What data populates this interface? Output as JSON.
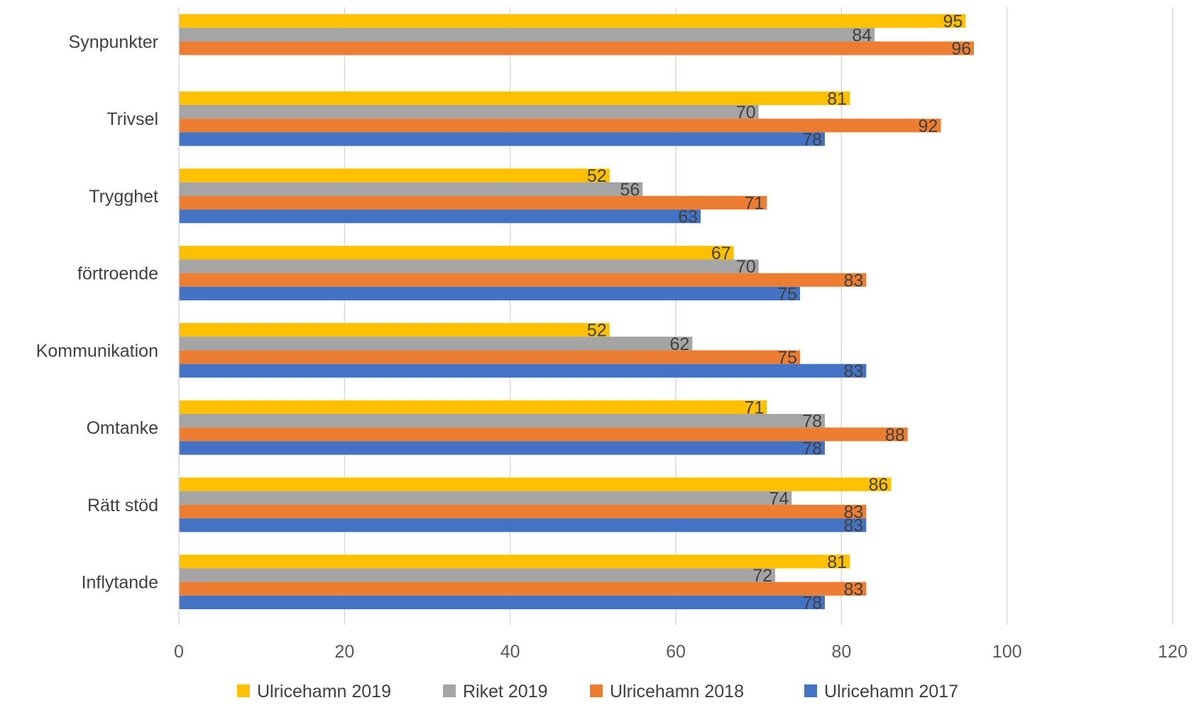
{
  "chart_data": {
    "type": "bar",
    "orientation": "horizontal",
    "title": "",
    "xlabel": "",
    "ylabel": "",
    "xlim": [
      0,
      120
    ],
    "x_ticks": [
      0,
      20,
      40,
      60,
      80,
      100,
      120
    ],
    "grid": "vertical",
    "legend_position": "bottom",
    "categories": [
      "Synpunkter",
      "Trivsel",
      "Trygghet",
      "förtroende",
      "Kommunikation",
      "Omtanke",
      "Rätt stöd",
      "Inflytande"
    ],
    "series": [
      {
        "name": "Ulricehamn 2019",
        "color": "#FFC000",
        "values": [
          95,
          81,
          52,
          67,
          52,
          71,
          86,
          81
        ]
      },
      {
        "name": "Riket 2019",
        "color": "#A5A5A5",
        "values": [
          84,
          70,
          56,
          70,
          62,
          78,
          74,
          72
        ]
      },
      {
        "name": "Ulricehamn 2018",
        "color": "#ED7D31",
        "values": [
          96,
          92,
          71,
          83,
          75,
          88,
          83,
          83
        ]
      },
      {
        "name": "Ulricehamn 2017",
        "color": "#4472C4",
        "values": [
          null,
          78,
          63,
          75,
          83,
          78,
          83,
          78
        ]
      }
    ]
  }
}
